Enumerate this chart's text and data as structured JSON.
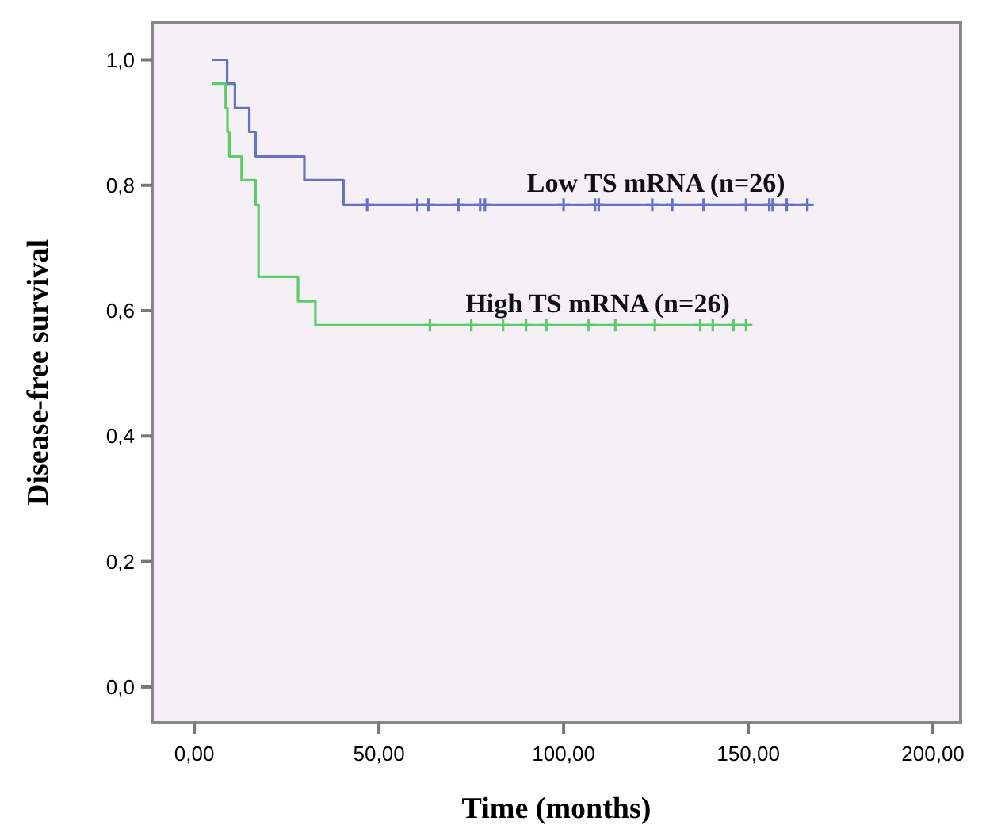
{
  "chart_data": {
    "type": "step",
    "xlabel": "Time (months)",
    "ylabel": "Disease-free survival",
    "xlim": [
      -11.4,
      207.5
    ],
    "ylim": [
      -0.057,
      1.06
    ],
    "xticks": [
      {
        "value": 0,
        "label": "0,00"
      },
      {
        "value": 50,
        "label": "50,00"
      },
      {
        "value": 100,
        "label": "100,00"
      },
      {
        "value": 150,
        "label": "150,00"
      },
      {
        "value": 200,
        "label": "200,00"
      }
    ],
    "yticks": [
      {
        "value": 0,
        "label": "0,0"
      },
      {
        "value": 0.2,
        "label": "0,2"
      },
      {
        "value": 0.4,
        "label": "0,4"
      },
      {
        "value": 0.6,
        "label": "0,6"
      },
      {
        "value": 0.8,
        "label": "0,8"
      },
      {
        "value": 1,
        "label": "1,0"
      }
    ],
    "marker": "none",
    "line_style": "solid",
    "series": [
      {
        "name": "Low TS mRNA (n=26)",
        "color": "#6474c2",
        "x": [
          4.7,
          8.9,
          11,
          14.9,
          16.6,
          29.8,
          40.4,
          166
        ],
        "values": [
          1,
          0.962,
          0.923,
          0.885,
          0.846,
          0.808,
          0.769,
          0.769
        ]
      },
      {
        "name": "High TS mRNA (n=26)",
        "color": "#5ccc6a",
        "x": [
          4.7,
          8.5,
          9,
          9.5,
          12.8,
          16.6,
          17.4,
          28.1,
          32.8,
          151
        ],
        "values": [
          0.962,
          0.923,
          0.885,
          0.846,
          0.808,
          0.769,
          0.654,
          0.615,
          0.577,
          0.577
        ]
      },
      {
        "type": "scatter",
        "marker": "cross",
        "color": "#6474c2",
        "x": [
          46.8,
          60.4,
          63.4,
          71.5,
          77.4,
          78.7,
          100,
          108.5,
          109.5,
          124,
          129.4,
          137.9,
          149.4,
          155.7,
          156.6,
          160.4,
          166
        ],
        "values": [
          0.769,
          0.769,
          0.769,
          0.769,
          0.769,
          0.769,
          0.769,
          0.769,
          0.769,
          0.769,
          0.769,
          0.769,
          0.769,
          0.769,
          0.769,
          0.769,
          0.769
        ]
      },
      {
        "type": "scatter",
        "marker": "cross",
        "color": "#5ccc6a",
        "x": [
          63.8,
          75,
          83.6,
          89.8,
          95.3,
          106.8,
          114,
          124.7,
          137,
          140.4,
          146,
          149.4
        ],
        "values": [
          0.577,
          0.577,
          0.577,
          0.577,
          0.577,
          0.577,
          0.577,
          0.577,
          0.577,
          0.577,
          0.577,
          0.577
        ]
      }
    ]
  }
}
